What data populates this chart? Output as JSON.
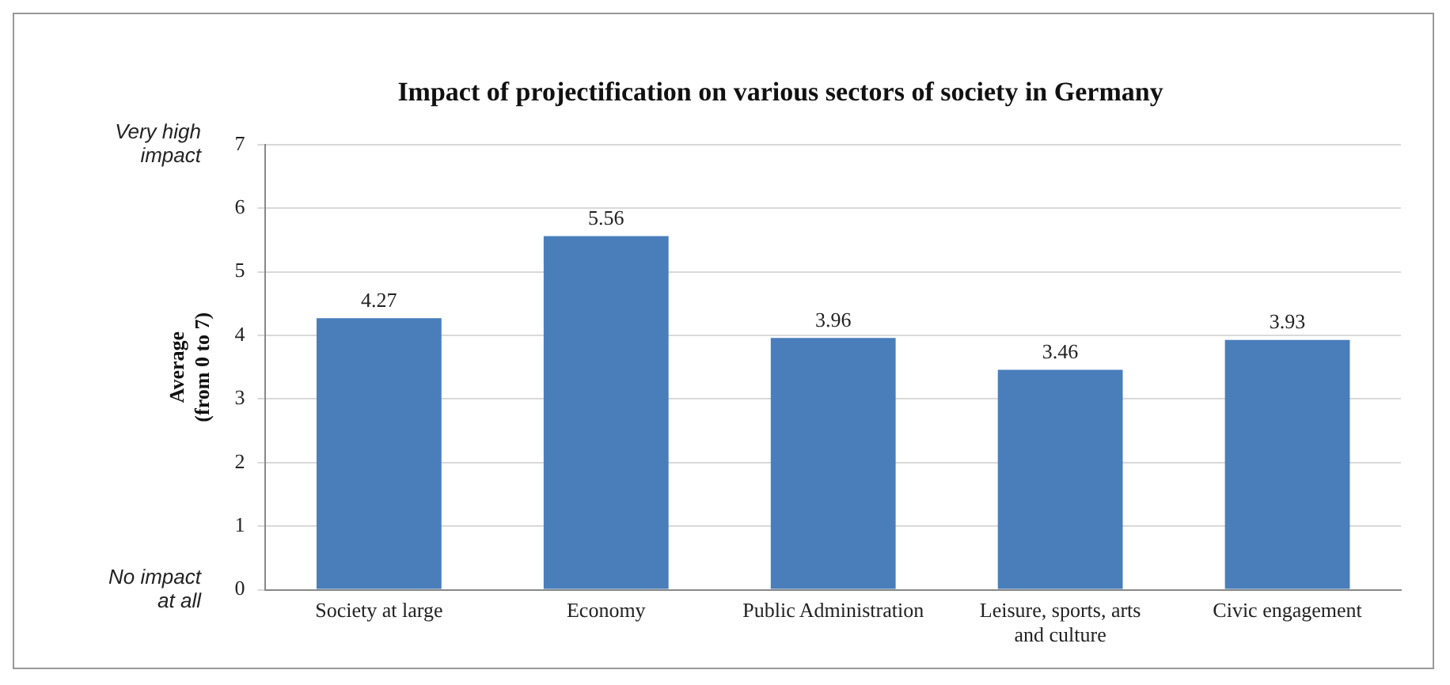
{
  "chart_data": {
    "type": "bar",
    "title": "Impact of projectification on various sectors of society in Germany",
    "ylabel": "Average (from 0 to 7)",
    "categories": [
      "Society at large",
      "Economy",
      "Public Administration",
      "Leisure, sports, arts and culture",
      "Civic engagement"
    ],
    "values": [
      4.27,
      5.56,
      3.96,
      3.46,
      3.93
    ],
    "color": "#4a7ebb",
    "ylim": [
      0,
      7
    ],
    "yticks": [
      0,
      1,
      2,
      3,
      4,
      5,
      6,
      7
    ],
    "grid": "y",
    "data_labels": true,
    "legend": false,
    "annotations": [
      "Very high impact",
      "No impact at all"
    ]
  }
}
